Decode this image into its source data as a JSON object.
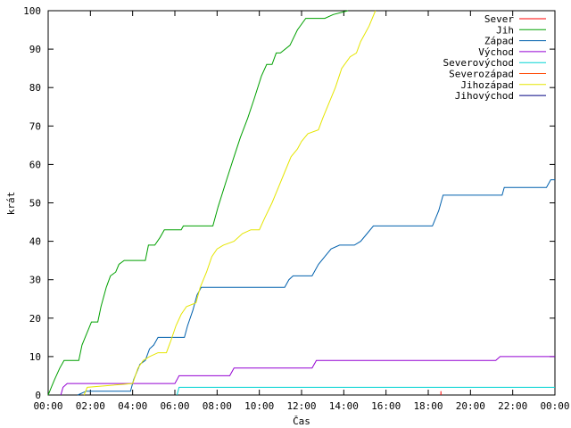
{
  "chart_data": {
    "type": "line",
    "xlabel": "Čas",
    "ylabel": "krát",
    "x_ticks": [
      "00:00",
      "02:00",
      "04:00",
      "06:00",
      "08:00",
      "10:00",
      "12:00",
      "14:00",
      "16:00",
      "18:00",
      "20:00",
      "22:00",
      "00:00"
    ],
    "y_ticks": [
      "0",
      "10",
      "20",
      "30",
      "40",
      "50",
      "60",
      "70",
      "80",
      "90",
      "100"
    ],
    "xlim": [
      0,
      24
    ],
    "ylim": [
      0,
      100
    ],
    "grid": false,
    "legend_position": "top-right",
    "series": [
      {
        "name": "Sever",
        "color": "#ff0000",
        "points": [
          [
            18.6,
            0
          ],
          [
            18.6,
            1
          ]
        ]
      },
      {
        "name": "Jih",
        "color": "#00a000",
        "points": [
          [
            0,
            0
          ],
          [
            0.15,
            2
          ],
          [
            0.3,
            4
          ],
          [
            0.55,
            7
          ],
          [
            0.75,
            9
          ],
          [
            1.45,
            9
          ],
          [
            1.6,
            13
          ],
          [
            1.9,
            17
          ],
          [
            2.05,
            19
          ],
          [
            2.35,
            19
          ],
          [
            2.5,
            23
          ],
          [
            2.75,
            28
          ],
          [
            2.95,
            31
          ],
          [
            3.2,
            32
          ],
          [
            3.35,
            34
          ],
          [
            3.6,
            35
          ],
          [
            4.6,
            35
          ],
          [
            4.75,
            39
          ],
          [
            5.05,
            39
          ],
          [
            5.3,
            41
          ],
          [
            5.5,
            43
          ],
          [
            6.3,
            43
          ],
          [
            6.4,
            44
          ],
          [
            7.8,
            44
          ],
          [
            8.05,
            49
          ],
          [
            8.45,
            56
          ],
          [
            8.8,
            62
          ],
          [
            9.1,
            67
          ],
          [
            9.45,
            72
          ],
          [
            9.75,
            77
          ],
          [
            10.1,
            83
          ],
          [
            10.35,
            86
          ],
          [
            10.6,
            86
          ],
          [
            10.8,
            89
          ],
          [
            11.0,
            89
          ],
          [
            11.45,
            91
          ],
          [
            11.8,
            95
          ],
          [
            12.2,
            98
          ],
          [
            13.1,
            98
          ],
          [
            13.5,
            99
          ],
          [
            14.2,
            100
          ]
        ]
      },
      {
        "name": "Západ",
        "color": "#0060ad",
        "points": [
          [
            1.4,
            0
          ],
          [
            1.8,
            1
          ],
          [
            3.9,
            1
          ],
          [
            4.05,
            4
          ],
          [
            4.35,
            8
          ],
          [
            4.6,
            9
          ],
          [
            4.8,
            12
          ],
          [
            5.0,
            13
          ],
          [
            5.2,
            15
          ],
          [
            6.45,
            15
          ],
          [
            6.6,
            18
          ],
          [
            6.85,
            22
          ],
          [
            7.05,
            26
          ],
          [
            7.25,
            28
          ],
          [
            11.2,
            28
          ],
          [
            11.4,
            30
          ],
          [
            11.6,
            31
          ],
          [
            12.5,
            31
          ],
          [
            12.8,
            34
          ],
          [
            13.1,
            36
          ],
          [
            13.4,
            38
          ],
          [
            13.8,
            39
          ],
          [
            14.5,
            39
          ],
          [
            14.8,
            40
          ],
          [
            15.1,
            42
          ],
          [
            15.4,
            44
          ],
          [
            18.2,
            44
          ],
          [
            18.5,
            48
          ],
          [
            18.7,
            52
          ],
          [
            21.5,
            52
          ],
          [
            21.6,
            54
          ],
          [
            23.6,
            54
          ],
          [
            23.8,
            56
          ],
          [
            24,
            56
          ]
        ]
      },
      {
        "name": "Východ",
        "color": "#9400d3",
        "points": [
          [
            0.6,
            0
          ],
          [
            0.7,
            2
          ],
          [
            0.9,
            3
          ],
          [
            6.0,
            3
          ],
          [
            6.1,
            4
          ],
          [
            6.2,
            5
          ],
          [
            8.6,
            5
          ],
          [
            8.8,
            7
          ],
          [
            12.5,
            7
          ],
          [
            12.7,
            9
          ],
          [
            21.2,
            9
          ],
          [
            21.4,
            10
          ],
          [
            24,
            10
          ]
        ]
      },
      {
        "name": "Severovýchod",
        "color": "#00d3d3",
        "points": [
          [
            6.1,
            0
          ],
          [
            6.2,
            2
          ],
          [
            24,
            2
          ]
        ]
      },
      {
        "name": "Severozápad",
        "color": "#ff4500",
        "points": []
      },
      {
        "name": "Jihozápad",
        "color": "#e5e500",
        "points": [
          [
            1.7,
            0
          ],
          [
            1.85,
            2
          ],
          [
            4.0,
            3
          ],
          [
            4.25,
            7
          ],
          [
            4.5,
            9
          ],
          [
            4.8,
            10
          ],
          [
            5.2,
            11
          ],
          [
            5.6,
            11
          ],
          [
            5.8,
            14
          ],
          [
            6.05,
            18
          ],
          [
            6.3,
            21
          ],
          [
            6.55,
            23
          ],
          [
            7.0,
            24
          ],
          [
            7.2,
            28
          ],
          [
            7.5,
            32
          ],
          [
            7.75,
            36
          ],
          [
            8.0,
            38
          ],
          [
            8.3,
            39
          ],
          [
            8.8,
            40
          ],
          [
            9.2,
            42
          ],
          [
            9.6,
            43
          ],
          [
            10.0,
            43
          ],
          [
            10.25,
            46
          ],
          [
            10.6,
            50
          ],
          [
            10.9,
            54
          ],
          [
            11.2,
            58
          ],
          [
            11.5,
            62
          ],
          [
            11.8,
            64
          ],
          [
            12.0,
            66
          ],
          [
            12.3,
            68
          ],
          [
            12.8,
            69
          ],
          [
            13.0,
            72
          ],
          [
            13.3,
            76
          ],
          [
            13.6,
            80
          ],
          [
            13.9,
            85
          ],
          [
            14.3,
            88
          ],
          [
            14.6,
            89
          ],
          [
            14.8,
            92
          ],
          [
            15.2,
            96
          ],
          [
            15.5,
            100
          ]
        ]
      },
      {
        "name": "Jihovýchod",
        "color": "#000080",
        "points": []
      }
    ]
  }
}
